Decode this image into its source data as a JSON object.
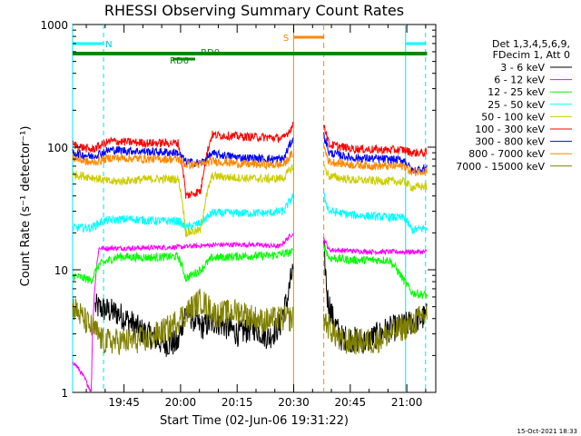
{
  "chart_data": {
    "type": "line",
    "title": "RHESSI Observing Summary Count Rates",
    "xlabel": "Start Time (02-Jun-06 19:31:22)",
    "ylabel": "Count Rate (s⁻¹ detector⁻¹)",
    "y_scale": "log",
    "ylim": [
      1,
      1000
    ],
    "xlim_minutes": [
      "19:31:22",
      "21:07:40"
    ],
    "x_tick_labels": [
      "19:45",
      "20:00",
      "20:15",
      "20:30",
      "20:45",
      "21:00"
    ],
    "x_tick_minutes": [
      13.63,
      28.63,
      43.63,
      58.63,
      73.63,
      88.63
    ],
    "y_tick_labels": [
      "1",
      "10",
      "100",
      "1000"
    ],
    "y_tick_values": [
      1,
      10,
      100,
      1000
    ],
    "grid": false,
    "legend_position": "right",
    "legend_header": [
      "Det 1,3,4,5,6,9,",
      "FDecim 1, Att 0"
    ],
    "footer_date": "15-Oct-2021 18:33",
    "gaps_minutes": [
      [
        58.6,
        66.6
      ]
    ],
    "series": [
      {
        "name": "3 - 6 keV",
        "color": "#000000",
        "segments": [
          [
            [
              6,
              5
            ],
            [
              12,
              4.4
            ],
            [
              18,
              3.2
            ],
            [
              24,
              2.5
            ],
            [
              28,
              2.5
            ],
            [
              30,
              4.6
            ],
            [
              34,
              3.4
            ],
            [
              38,
              3.8
            ],
            [
              44,
              3.0
            ],
            [
              48,
              3.4
            ],
            [
              52,
              2.8
            ],
            [
              55,
              3.5
            ],
            [
              57,
              5.8
            ],
            [
              58.5,
              10
            ]
          ],
          [
            [
              66.6,
              14
            ],
            [
              67.5,
              6
            ],
            [
              69,
              4.0
            ],
            [
              71,
              2.8
            ],
            [
              78,
              2.6
            ],
            [
              83,
              3.2
            ],
            [
              88,
              3.5
            ],
            [
              94,
              4.2
            ]
          ]
        ]
      },
      {
        "name": "6 - 12 keV",
        "color": "#ff00ff",
        "segments": [
          [
            [
              0,
              1.8
            ],
            [
              5,
              1.0
            ],
            [
              7,
              15
            ],
            [
              15,
              15
            ],
            [
              28,
              15.3
            ],
            [
              38,
              16
            ],
            [
              48,
              16
            ],
            [
              55,
              15.5
            ],
            [
              58.5,
              20
            ]
          ],
          [
            [
              66.6,
              18
            ],
            [
              68,
              14.5
            ],
            [
              80,
              14
            ],
            [
              90,
              14
            ],
            [
              94,
              14
            ]
          ]
        ]
      },
      {
        "name": "12 - 25 keV",
        "color": "#00ff00",
        "segments": [
          [
            [
              0,
              9
            ],
            [
              5,
              8.2
            ],
            [
              7,
              11
            ],
            [
              12,
              12.8
            ],
            [
              20,
              12.6
            ],
            [
              28,
              12.8
            ],
            [
              30,
              8.5
            ],
            [
              34,
              10
            ],
            [
              37,
              12.5
            ],
            [
              46,
              13
            ],
            [
              52,
              13
            ],
            [
              56,
              13.5
            ],
            [
              58.5,
              14
            ]
          ],
          [
            [
              66.6,
              16
            ],
            [
              68,
              12.5
            ],
            [
              74,
              12
            ],
            [
              84,
              12
            ],
            [
              88,
              8
            ],
            [
              90,
              6.5
            ],
            [
              94,
              6.2
            ]
          ]
        ]
      },
      {
        "name": "25 - 50 keV",
        "color": "#00ffff",
        "segments": [
          [
            [
              0,
              22
            ],
            [
              5,
              22
            ],
            [
              8,
              25
            ],
            [
              15,
              26
            ],
            [
              22,
              25
            ],
            [
              28,
              25
            ],
            [
              30,
              22
            ],
            [
              34,
              24
            ],
            [
              37,
              29
            ],
            [
              45,
              29
            ],
            [
              52,
              29
            ],
            [
              56,
              30
            ],
            [
              58.5,
              40
            ]
          ],
          [
            [
              66.6,
              40
            ],
            [
              68,
              30
            ],
            [
              74,
              28
            ],
            [
              82,
              27
            ],
            [
              88,
              26.5
            ],
            [
              90,
              21
            ],
            [
              94,
              22
            ]
          ]
        ]
      },
      {
        "name": "50 - 100 keV",
        "color": "#cccc00",
        "segments": [
          [
            [
              0,
              60
            ],
            [
              5,
              57
            ],
            [
              10,
              52
            ],
            [
              20,
              55
            ],
            [
              28,
              55
            ],
            [
              30,
              20
            ],
            [
              34,
              21
            ],
            [
              37,
              58
            ],
            [
              45,
              56
            ],
            [
              52,
              55
            ],
            [
              56,
              56
            ],
            [
              58.5,
              70
            ]
          ],
          [
            [
              66.6,
              70
            ],
            [
              68,
              58
            ],
            [
              74,
              54
            ],
            [
              82,
              53
            ],
            [
              88,
              52
            ],
            [
              90,
              47
            ],
            [
              94,
              48
            ]
          ]
        ]
      },
      {
        "name": "100 - 300 keV",
        "color": "#ff0000",
        "segments": [
          [
            [
              0,
              105
            ],
            [
              5,
              95
            ],
            [
              10,
              112
            ],
            [
              20,
              108
            ],
            [
              28,
              108
            ],
            [
              30,
              40
            ],
            [
              34,
              44
            ],
            [
              37,
              126
            ],
            [
              45,
              122
            ],
            [
              52,
              120
            ],
            [
              56,
              118
            ],
            [
              58.5,
              150
            ]
          ],
          [
            [
              66.6,
              155
            ],
            [
              68,
              105
            ],
            [
              74,
              97
            ],
            [
              82,
              95
            ],
            [
              88,
              95
            ],
            [
              90,
              90
            ],
            [
              94,
              90
            ]
          ]
        ]
      },
      {
        "name": "300 - 800 keV",
        "color": "#0000ff",
        "segments": [
          [
            [
              0,
              90
            ],
            [
              5,
              84
            ],
            [
              10,
              95
            ],
            [
              20,
              92
            ],
            [
              28,
              90
            ],
            [
              30,
              76
            ],
            [
              34,
              74
            ],
            [
              37,
              88
            ],
            [
              45,
              82
            ],
            [
              52,
              80
            ],
            [
              56,
              80
            ],
            [
              58.5,
              118
            ]
          ],
          [
            [
              66.6,
              125
            ],
            [
              68,
              90
            ],
            [
              74,
              82
            ],
            [
              82,
              80
            ],
            [
              88,
              78
            ],
            [
              90,
              64
            ],
            [
              94,
              68
            ]
          ]
        ]
      },
      {
        "name": "800 - 7000 keV",
        "color": "#ff8800",
        "segments": [
          [
            [
              0,
              82
            ],
            [
              5,
              74
            ],
            [
              10,
              82
            ],
            [
              20,
              80
            ],
            [
              28,
              80
            ],
            [
              30,
              72
            ],
            [
              34,
              72
            ],
            [
              37,
              77
            ],
            [
              45,
              73
            ],
            [
              52,
              72
            ],
            [
              56,
              72
            ],
            [
              58.5,
              90
            ]
          ],
          [
            [
              66.6,
              100
            ],
            [
              68,
              76
            ],
            [
              74,
              72
            ],
            [
              82,
              70
            ],
            [
              88,
              70
            ],
            [
              90,
              62
            ],
            [
              94,
              65
            ]
          ]
        ]
      },
      {
        "name": "7000 - 15000 keV",
        "color": "#808000",
        "segments": [
          [
            [
              0,
              5
            ],
            [
              4,
              3.6
            ],
            [
              6,
              3.2
            ],
            [
              8,
              2.6
            ],
            [
              14,
              2.6
            ],
            [
              20,
              2.7
            ],
            [
              26,
              3.4
            ],
            [
              30,
              4.4
            ],
            [
              34,
              5.6
            ],
            [
              38,
              4.3
            ],
            [
              44,
              4.6
            ],
            [
              50,
              3.8
            ],
            [
              56,
              4.0
            ],
            [
              58.5,
              4.0
            ]
          ],
          [
            [
              66.6,
              4
            ],
            [
              68,
              3.4
            ],
            [
              71,
              2.6
            ],
            [
              80,
              2.6
            ],
            [
              86,
              3.2
            ],
            [
              90,
              3.6
            ],
            [
              94,
              4.4
            ]
          ]
        ]
      }
    ],
    "annotations": {
      "night_label": "N",
      "saa_label": "S",
      "rd0_label": "RD0",
      "rd6_label": "RD6",
      "night_cyan_lines_minutes": [
        0,
        8.2,
        88.3,
        93.6
      ],
      "saa_lines_minutes": [
        58.6,
        66.6
      ],
      "night_bars_minutes": [
        [
          0,
          8.2
        ],
        [
          88.3,
          93.6
        ]
      ],
      "saa_bar_minutes": [
        [
          58.6,
          66.6
        ]
      ],
      "rd0_bar_minutes": [
        [
          0,
          94
        ]
      ],
      "rd6_bar_minutes": [
        [
          26.5,
          32.5
        ]
      ]
    }
  }
}
